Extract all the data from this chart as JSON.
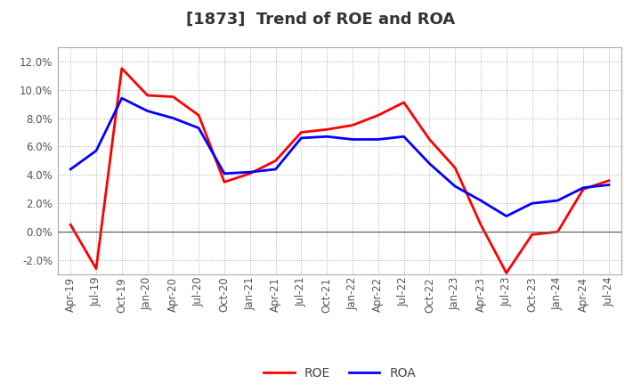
{
  "title": "[1873]  Trend of ROE and ROA",
  "ylim": [
    -0.03,
    0.13
  ],
  "yticks": [
    -0.02,
    0.0,
    0.02,
    0.04,
    0.06,
    0.08,
    0.1,
    0.12
  ],
  "background_color": "#ffffff",
  "plot_bg_color": "#ffffff",
  "grid_color": "#aaaaaa",
  "labels": [
    "Apr-19",
    "Jul-19",
    "Oct-19",
    "Jan-20",
    "Apr-20",
    "Jul-20",
    "Oct-20",
    "Jan-21",
    "Apr-21",
    "Jul-21",
    "Oct-21",
    "Jan-22",
    "Apr-22",
    "Jul-22",
    "Oct-22",
    "Jan-23",
    "Apr-23",
    "Jul-23",
    "Oct-23",
    "Jan-24",
    "Apr-24",
    "Jul-24"
  ],
  "roe": [
    0.005,
    -0.026,
    0.115,
    0.096,
    0.095,
    0.082,
    0.035,
    0.041,
    0.05,
    0.07,
    0.072,
    0.075,
    0.082,
    0.091,
    0.065,
    0.045,
    0.005,
    -0.029,
    -0.002,
    0.0,
    0.03,
    0.036
  ],
  "roa": [
    0.044,
    0.057,
    0.094,
    0.085,
    0.08,
    0.073,
    0.041,
    0.042,
    0.044,
    0.066,
    0.067,
    0.065,
    0.065,
    0.067,
    0.048,
    0.032,
    0.022,
    0.011,
    0.02,
    0.022,
    0.031,
    0.033
  ],
  "roe_color": "#ff0000",
  "roa_color": "#0000ff",
  "line_width": 2.0,
  "title_fontsize": 13,
  "tick_fontsize": 8.5,
  "legend_fontsize": 10,
  "title_color": "#333333",
  "tick_color": "#555555"
}
